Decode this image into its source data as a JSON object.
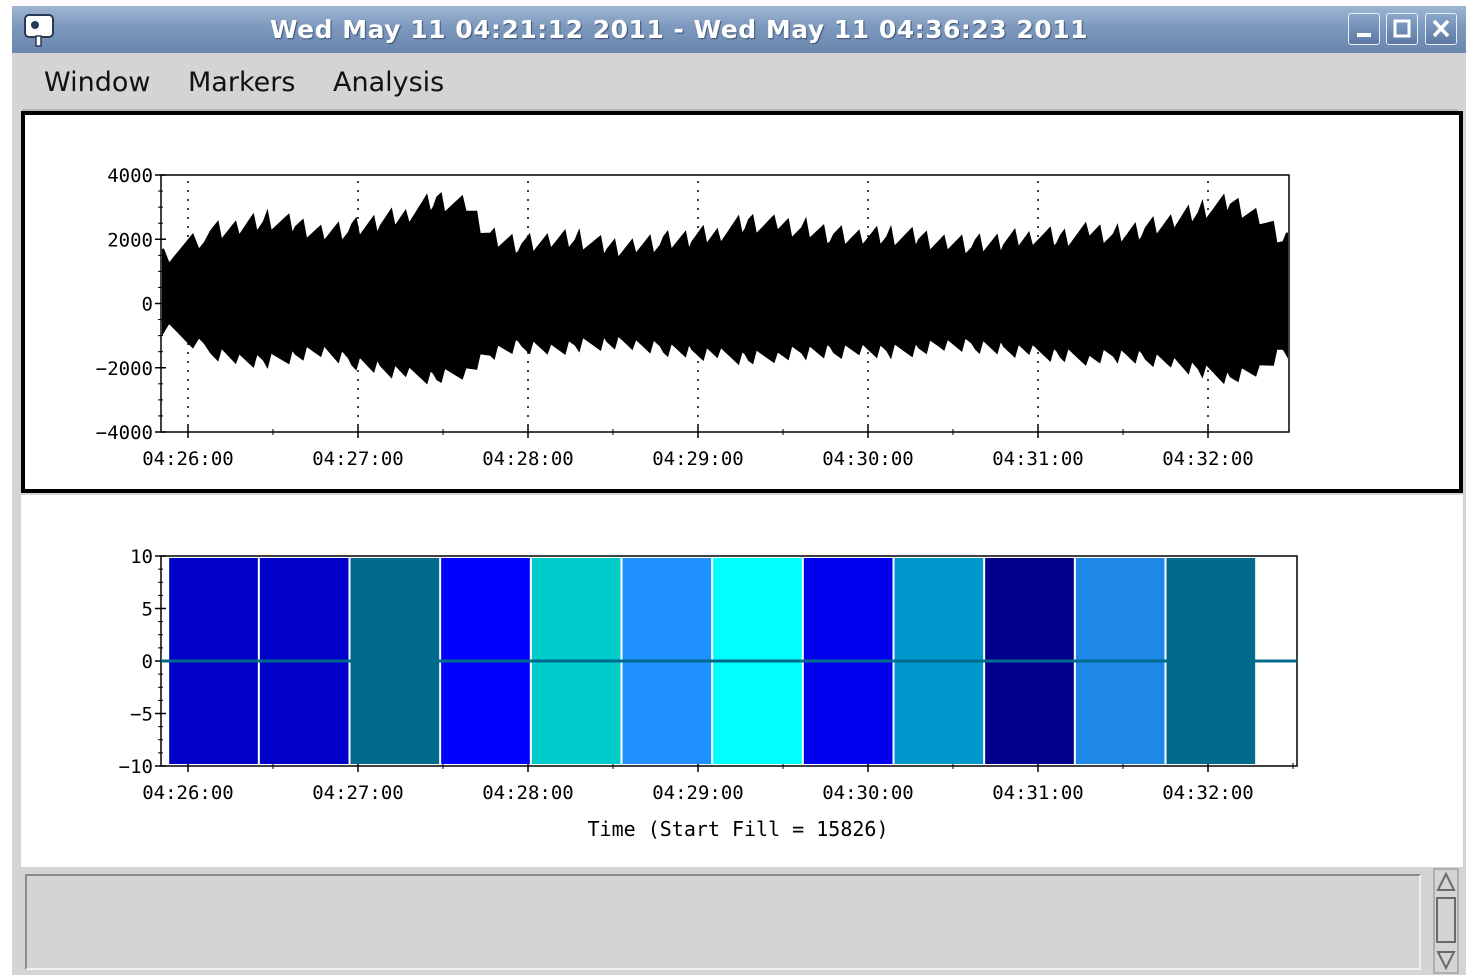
{
  "window": {
    "title": "Wed May 11 04:21:12 2011 - Wed May 11 04:36:23 2011",
    "controls": [
      "minimize",
      "maximize",
      "close"
    ]
  },
  "menubar": {
    "items": [
      "Window",
      "Markers",
      "Analysis"
    ]
  },
  "colors": {
    "titlebar": "#7d98bd",
    "bars": [
      "#0000c8",
      "#0000c8",
      "#006a8c",
      "#0000ff",
      "#00cccc",
      "#1e90ff",
      "#00ffff",
      "#0000ee",
      "#0098cc",
      "#00008b",
      "#1e88e8",
      "#006a8c"
    ]
  },
  "chart_data": [
    {
      "type": "line",
      "title": "",
      "xlabel": "",
      "ylabel": "",
      "ylim": [
        -4000,
        4000
      ],
      "yticks": [
        "4000",
        "2000",
        "0",
        "−2000",
        "−4000"
      ],
      "xticks": [
        "04:26:00",
        "04:27:00",
        "04:28:00",
        "04:29:00",
        "04:30:00",
        "04:31:00",
        "04:32:00"
      ],
      "grid": "vertical dotted",
      "series": [
        {
          "color": "#000000",
          "x": [
            "04:25:58",
            "04:26:08",
            "04:26:18",
            "04:26:28",
            "04:26:38",
            "04:26:48",
            "04:26:58",
            "04:27:08",
            "04:27:18",
            "04:27:28",
            "04:27:38",
            "04:27:48",
            "04:27:58",
            "04:28:08",
            "04:28:18",
            "04:28:28",
            "04:28:38",
            "04:28:48",
            "04:28:58",
            "04:29:08",
            "04:29:18",
            "04:29:28",
            "04:29:38",
            "04:29:48",
            "04:29:58",
            "04:30:08",
            "04:30:18",
            "04:30:28",
            "04:30:38",
            "04:30:48",
            "04:30:58",
            "04:31:08",
            "04:31:18",
            "04:31:28",
            "04:31:38",
            "04:31:48",
            "04:31:58",
            "04:32:08",
            "04:32:18",
            "04:32:28"
          ],
          "upper": [
            1700,
            2500,
            2600,
            2900,
            2700,
            2500,
            2600,
            2800,
            3100,
            3500,
            3300,
            2300,
            2100,
            2200,
            2300,
            2000,
            2100,
            2200,
            2300,
            2500,
            2800,
            2700,
            2600,
            2400,
            2300,
            2400,
            2300,
            2200,
            2100,
            2200,
            2400,
            2300,
            2500,
            2400,
            2600,
            2800,
            3200,
            3400,
            3000,
            2200
          ],
          "lower": [
            -900,
            -1700,
            -1900,
            -2000,
            -1800,
            -1700,
            -2000,
            -2200,
            -2400,
            -2500,
            -2300,
            -1700,
            -1500,
            -1600,
            -1500,
            -1400,
            -1500,
            -1600,
            -1700,
            -1800,
            -1900,
            -1800,
            -1700,
            -1700,
            -1600,
            -1700,
            -1600,
            -1500,
            -1500,
            -1600,
            -1700,
            -1800,
            -1900,
            -1800,
            -1900,
            -2000,
            -2300,
            -2500,
            -2300,
            -1600
          ]
        }
      ]
    },
    {
      "type": "bar",
      "title": "",
      "xlabel": "Time (Start Fill = 15826)",
      "ylabel": "",
      "ylim": [
        -10,
        10
      ],
      "yticks": [
        "10",
        "5",
        "0",
        "−5",
        "−10"
      ],
      "xticks": [
        "04:26:00",
        "04:27:00",
        "04:28:00",
        "04:29:00",
        "04:30:00",
        "04:31:00",
        "04:32:00"
      ],
      "bars": [
        {
          "start": "04:25:53",
          "end": "04:26:25",
          "low": -10,
          "high": 10
        },
        {
          "start": "04:26:25",
          "end": "04:26:57",
          "low": -10,
          "high": 10
        },
        {
          "start": "04:26:57",
          "end": "04:27:29",
          "low": -10,
          "high": 10
        },
        {
          "start": "04:27:29",
          "end": "04:28:01",
          "low": -10,
          "high": 10
        },
        {
          "start": "04:28:01",
          "end": "04:28:33",
          "low": -10,
          "high": 10
        },
        {
          "start": "04:28:33",
          "end": "04:29:05",
          "low": -10,
          "high": 10
        },
        {
          "start": "04:29:05",
          "end": "04:29:37",
          "low": -10,
          "high": 10
        },
        {
          "start": "04:29:37",
          "end": "04:30:09",
          "low": -10,
          "high": 10
        },
        {
          "start": "04:30:09",
          "end": "04:30:41",
          "low": -10,
          "high": 10
        },
        {
          "start": "04:30:41",
          "end": "04:31:13",
          "low": -10,
          "high": 10
        },
        {
          "start": "04:31:13",
          "end": "04:31:45",
          "low": -10,
          "high": 10
        },
        {
          "start": "04:31:45",
          "end": "04:32:17",
          "low": -10,
          "high": 10
        }
      ],
      "baseline": 0
    }
  ]
}
